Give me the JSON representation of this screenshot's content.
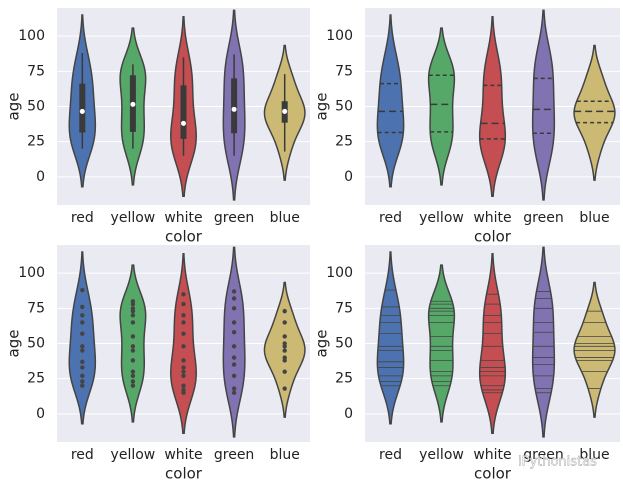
{
  "chart_data": [
    {
      "type": "violin",
      "inner": "box",
      "categories": [
        "red",
        "yellow",
        "white",
        "green",
        "blue"
      ],
      "colors": [
        "#4c72b0",
        "#55a868",
        "#c44e52",
        "#8172b2",
        "#ccb974"
      ],
      "values": [
        [
          20,
          23,
          27,
          33,
          37,
          45,
          48,
          57,
          65,
          70,
          76,
          88
        ],
        [
          20,
          23,
          27,
          30,
          38,
          45,
          48,
          55,
          65,
          70,
          73,
          75,
          78,
          80
        ],
        [
          15,
          17,
          20,
          27,
          30,
          33,
          38,
          48,
          57,
          65,
          70,
          78,
          85
        ],
        [
          15,
          18,
          27,
          35,
          40,
          48,
          58,
          65,
          75,
          82,
          87
        ],
        [
          18,
          30,
          38,
          40,
          45,
          48,
          50,
          55,
          65,
          73
        ]
      ],
      "ylim": [
        -20,
        120
      ],
      "yticks": [
        0,
        25,
        50,
        75,
        100
      ],
      "xlabel": "color",
      "ylabel": "age",
      "grid": true
    },
    {
      "type": "violin",
      "inner": "quartile",
      "categories": [
        "red",
        "yellow",
        "white",
        "green",
        "blue"
      ],
      "colors": [
        "#4c72b0",
        "#55a868",
        "#c44e52",
        "#8172b2",
        "#ccb974"
      ],
      "values": [
        [
          20,
          23,
          27,
          33,
          37,
          45,
          48,
          57,
          65,
          70,
          76,
          88
        ],
        [
          20,
          23,
          27,
          30,
          38,
          45,
          48,
          55,
          65,
          70,
          73,
          75,
          78,
          80
        ],
        [
          15,
          17,
          20,
          27,
          30,
          33,
          38,
          48,
          57,
          65,
          70,
          78,
          85
        ],
        [
          15,
          18,
          27,
          35,
          40,
          48,
          58,
          65,
          75,
          82,
          87
        ],
        [
          18,
          30,
          38,
          40,
          45,
          48,
          50,
          55,
          65,
          73
        ]
      ],
      "ylim": [
        -20,
        120
      ],
      "yticks": [
        0,
        25,
        50,
        75,
        100
      ],
      "xlabel": "color",
      "ylabel": "age",
      "grid": true
    },
    {
      "type": "violin",
      "inner": "point",
      "categories": [
        "red",
        "yellow",
        "white",
        "green",
        "blue"
      ],
      "colors": [
        "#4c72b0",
        "#55a868",
        "#c44e52",
        "#8172b2",
        "#ccb974"
      ],
      "values": [
        [
          20,
          23,
          27,
          33,
          37,
          45,
          48,
          57,
          65,
          70,
          76,
          88
        ],
        [
          20,
          23,
          27,
          30,
          38,
          45,
          48,
          55,
          65,
          70,
          73,
          75,
          78,
          80
        ],
        [
          15,
          17,
          20,
          27,
          30,
          33,
          38,
          48,
          57,
          65,
          70,
          78,
          85
        ],
        [
          15,
          18,
          27,
          35,
          40,
          48,
          58,
          65,
          75,
          82,
          87
        ],
        [
          18,
          30,
          38,
          40,
          45,
          48,
          50,
          55,
          65,
          73
        ]
      ],
      "ylim": [
        -20,
        120
      ],
      "yticks": [
        0,
        25,
        50,
        75,
        100
      ],
      "xlabel": "color",
      "ylabel": "age",
      "grid": true
    },
    {
      "type": "violin",
      "inner": "stick",
      "categories": [
        "red",
        "yellow",
        "white",
        "green",
        "blue"
      ],
      "colors": [
        "#4c72b0",
        "#55a868",
        "#c44e52",
        "#8172b2",
        "#ccb974"
      ],
      "values": [
        [
          20,
          23,
          27,
          33,
          37,
          45,
          48,
          57,
          65,
          70,
          76,
          88
        ],
        [
          20,
          23,
          27,
          30,
          38,
          45,
          48,
          55,
          65,
          70,
          73,
          75,
          78,
          80
        ],
        [
          15,
          17,
          20,
          27,
          30,
          33,
          38,
          48,
          57,
          65,
          70,
          78,
          85
        ],
        [
          15,
          18,
          27,
          35,
          40,
          48,
          58,
          65,
          75,
          82,
          87
        ],
        [
          18,
          30,
          38,
          40,
          45,
          48,
          50,
          55,
          65,
          73
        ]
      ],
      "ylim": [
        -20,
        120
      ],
      "yticks": [
        0,
        25,
        50,
        75,
        100
      ],
      "xlabel": "color",
      "ylabel": "age",
      "grid": true
    }
  ],
  "watermark": "iPythonistas"
}
